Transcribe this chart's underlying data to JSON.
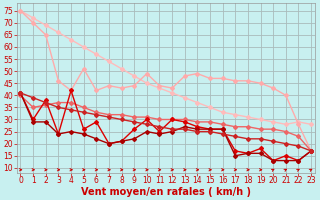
{
  "background_color": "#c8f0f0",
  "grid_color": "#aabbbb",
  "x_ticks": [
    0,
    1,
    2,
    3,
    4,
    5,
    6,
    7,
    8,
    9,
    10,
    11,
    12,
    13,
    14,
    15,
    16,
    17,
    18,
    19,
    20,
    21,
    22,
    23
  ],
  "y_ticks": [
    10,
    15,
    20,
    25,
    30,
    35,
    40,
    45,
    50,
    55,
    60,
    65,
    70,
    75
  ],
  "ylim": [
    8,
    78
  ],
  "xlim": [
    -0.3,
    23.3
  ],
  "lines": [
    {
      "x": [
        0,
        1,
        2,
        3,
        4,
        5,
        6,
        7,
        8,
        9,
        10,
        11,
        12,
        13,
        14,
        15,
        16,
        17,
        18,
        19,
        20,
        21,
        22,
        23
      ],
      "y": [
        75,
        72,
        69,
        66,
        63,
        60,
        57,
        54,
        51,
        48,
        45,
        43,
        41,
        39,
        37,
        35,
        33,
        32,
        31,
        30,
        29,
        28,
        29,
        28
      ],
      "color": "#ffbbbb",
      "lw": 1.0,
      "marker": "D",
      "ms": 2.0
    },
    {
      "x": [
        0,
        1,
        2,
        3,
        4,
        5,
        6,
        7,
        8,
        9,
        10,
        11,
        12,
        13,
        14,
        15,
        16,
        17,
        18,
        19,
        20,
        21,
        22,
        23
      ],
      "y": [
        75,
        70,
        65,
        46,
        42,
        51,
        42,
        44,
        43,
        44,
        49,
        44,
        43,
        48,
        49,
        47,
        47,
        46,
        46,
        45,
        43,
        40,
        28,
        17
      ],
      "color": "#ffaaaa",
      "lw": 1.0,
      "marker": "D",
      "ms": 2.0
    },
    {
      "x": [
        0,
        1,
        2,
        3,
        4,
        5,
        6,
        7,
        8,
        9,
        10,
        11,
        12,
        13,
        14,
        15,
        16,
        17,
        18,
        19,
        20,
        21,
        22,
        23
      ],
      "y": [
        40,
        35,
        36,
        37,
        37,
        35,
        33,
        32,
        32,
        31,
        31,
        30,
        30,
        30,
        29,
        29,
        28,
        27,
        27,
        26,
        26,
        25,
        23,
        17
      ],
      "color": "#ee6666",
      "lw": 1.0,
      "marker": "D",
      "ms": 2.0
    },
    {
      "x": [
        0,
        1,
        2,
        3,
        4,
        5,
        6,
        7,
        8,
        9,
        10,
        11,
        12,
        13,
        14,
        15,
        16,
        17,
        18,
        19,
        20,
        21,
        22,
        23
      ],
      "y": [
        41,
        30,
        38,
        24,
        42,
        26,
        29,
        20,
        21,
        26,
        30,
        25,
        30,
        29,
        27,
        26,
        26,
        17,
        16,
        18,
        13,
        15,
        13,
        17
      ],
      "color": "#dd0000",
      "lw": 1.0,
      "marker": "D",
      "ms": 2.0
    },
    {
      "x": [
        0,
        1,
        2,
        3,
        4,
        5,
        6,
        7,
        8,
        9,
        10,
        11,
        12,
        13,
        14,
        15,
        16,
        17,
        18,
        19,
        20,
        21,
        22,
        23
      ],
      "y": [
        41,
        29,
        29,
        24,
        25,
        24,
        22,
        20,
        21,
        22,
        25,
        24,
        25,
        27,
        26,
        26,
        26,
        15,
        16,
        16,
        13,
        13,
        13,
        17
      ],
      "color": "#aa0000",
      "lw": 1.0,
      "marker": "D",
      "ms": 2.0
    },
    {
      "x": [
        0,
        1,
        2,
        3,
        4,
        5,
        6,
        7,
        8,
        9,
        10,
        11,
        12,
        13,
        14,
        15,
        16,
        17,
        18,
        19,
        20,
        21,
        22,
        23
      ],
      "y": [
        41,
        39,
        37,
        35,
        34,
        33,
        32,
        31,
        30,
        29,
        28,
        27,
        26,
        26,
        25,
        25,
        24,
        23,
        22,
        22,
        21,
        20,
        19,
        17
      ],
      "color": "#cc2222",
      "lw": 1.0,
      "marker": "D",
      "ms": 2.0
    }
  ],
  "xlabel": "Vent moyen/en rafales ( km/h )",
  "xlabel_color": "#cc0000",
  "xlabel_fontsize": 7.0,
  "tick_fontsize": 5.5,
  "tick_color": "#cc0000",
  "arrow_color": "#cc0000"
}
